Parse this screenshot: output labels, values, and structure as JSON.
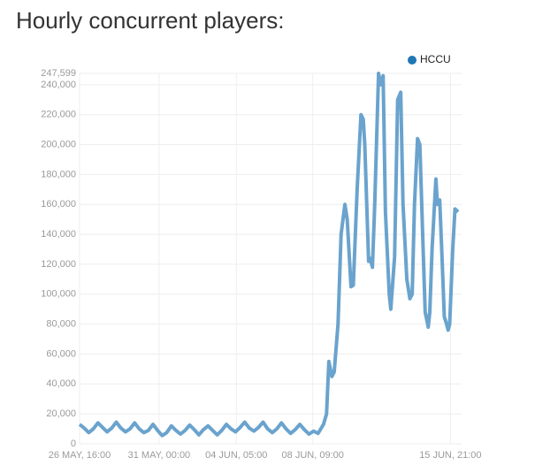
{
  "chart_data": {
    "type": "line",
    "title": "Hourly concurrent players:",
    "x": [
      "26 MAY, 16:00",
      "26 MAY, 22:00",
      "27 MAY, 04:00",
      "27 MAY, 10:00",
      "27 MAY, 16:00",
      "27 MAY, 22:00",
      "28 MAY, 04:00",
      "28 MAY, 10:00",
      "28 MAY, 16:00",
      "28 MAY, 22:00",
      "29 MAY, 04:00",
      "29 MAY, 10:00",
      "29 MAY, 16:00",
      "29 MAY, 22:00",
      "30 MAY, 04:00",
      "30 MAY, 10:00",
      "30 MAY, 16:00",
      "30 MAY, 22:00",
      "31 MAY, 04:00",
      "31 MAY, 10:00",
      "31 MAY, 16:00",
      "31 MAY, 22:00",
      "01 JUN, 04:00",
      "01 JUN, 10:00",
      "01 JUN, 16:00",
      "01 JUN, 22:00",
      "02 JUN, 04:00",
      "02 JUN, 10:00",
      "02 JUN, 16:00",
      "02 JUN, 22:00",
      "03 JUN, 04:00",
      "03 JUN, 10:00",
      "03 JUN, 16:00",
      "03 JUN, 22:00",
      "04 JUN, 04:00",
      "04 JUN, 10:00",
      "04 JUN, 16:00",
      "04 JUN, 22:00",
      "05 JUN, 04:00",
      "05 JUN, 10:00",
      "05 JUN, 16:00",
      "05 JUN, 22:00",
      "06 JUN, 04:00",
      "06 JUN, 10:00",
      "06 JUN, 16:00",
      "06 JUN, 22:00",
      "07 JUN, 04:00",
      "07 JUN, 10:00",
      "07 JUN, 16:00",
      "07 JUN, 22:00",
      "08 JUN, 04:00",
      "08 JUN, 10:00",
      "08 JUN, 16:00",
      "08 JUN, 23:00",
      "09 JUN, 03:00",
      "09 JUN, 06:00",
      "09 JUN, 10:00",
      "09 JUN, 13:00",
      "09 JUN, 18:00",
      "09 JUN, 22:00",
      "10 JUN, 03:00",
      "10 JUN, 06:00",
      "10 JUN, 11:00",
      "10 JUN, 14:00",
      "10 JUN, 19:00",
      "11 JUN, 00:00",
      "11 JUN, 03:00",
      "11 JUN, 05:00",
      "11 JUN, 10:00",
      "11 JUN, 12:00",
      "11 JUN, 15:00",
      "11 JUN, 18:00",
      "11 JUN, 23:00",
      "12 JUN, 02:00",
      "12 JUN, 05:00",
      "12 JUN, 08:00",
      "12 JUN, 13:00",
      "12 JUN, 15:00",
      "12 JUN, 20:00",
      "13 JUN, 00:00",
      "13 JUN, 04:00",
      "13 JUN, 07:00",
      "13 JUN, 12:00",
      "13 JUN, 16:00",
      "13 JUN, 19:00",
      "13 JUN, 22:00",
      "14 JUN, 02:00",
      "14 JUN, 05:00",
      "14 JUN, 09:00",
      "14 JUN, 12:00",
      "14 JUN, 16:00",
      "14 JUN, 18:00",
      "14 JUN, 21:00",
      "15 JUN, 02:00",
      "15 JUN, 04:00",
      "15 JUN, 07:00",
      "15 JUN, 10:00",
      "15 JUN, 13:00",
      "15 JUN, 16:00",
      "15 JUN, 18:00",
      "15 JUN, 20:00",
      "16 JUN, 00:00",
      "16 JUN, 03:00",
      "16 JUN, 07:00"
    ],
    "series": [
      {
        "name": "HCCU",
        "color": "#6aa3cd",
        "legend_color": "#1f77b4",
        "values": [
          13000,
          10500,
          7500,
          10000,
          14000,
          11000,
          8000,
          10500,
          14500,
          10500,
          8000,
          10000,
          14000,
          10000,
          7500,
          9000,
          13000,
          9000,
          5500,
          7500,
          12000,
          9000,
          6500,
          9000,
          12500,
          9500,
          6000,
          9500,
          12000,
          9000,
          6000,
          9000,
          13000,
          10000,
          8000,
          11000,
          14500,
          10500,
          8500,
          11000,
          14500,
          10000,
          7500,
          10000,
          14000,
          10000,
          7000,
          9500,
          13000,
          9500,
          6500,
          8500,
          7000,
          13000,
          20000,
          55000,
          45000,
          48000,
          80000,
          140000,
          160000,
          150000,
          105000,
          106000,
          170000,
          220000,
          217000,
          200000,
          122000,
          124000,
          118000,
          160000,
          247599,
          240000,
          246000,
          155000,
          100000,
          90000,
          125000,
          230000,
          235000,
          160000,
          110000,
          97000,
          100000,
          160000,
          204000,
          200000,
          135000,
          88000,
          78000,
          88000,
          130000,
          177000,
          160000,
          163000,
          125000,
          85000,
          80000,
          76000,
          80000,
          130000,
          157000,
          155000
        ]
      }
    ],
    "xlim": [
      "26 MAY, 16:00",
      "16 JUN, 07:00"
    ],
    "xticks": [
      "26 MAY, 16:00",
      "31 MAY, 00:00",
      "04 JUN, 05:00",
      "08 JUN, 09:00",
      "15 JUN, 21:00"
    ],
    "ylim": [
      0,
      247599
    ],
    "yticks": [
      0,
      {
        "value": 20000,
        "label": "20,000"
      },
      {
        "value": 40000,
        "label": "40,000"
      },
      {
        "value": 60000,
        "label": "60,000"
      },
      {
        "value": 80000,
        "label": "80,000"
      },
      {
        "value": 100000,
        "label": "100,000"
      },
      {
        "value": 120000,
        "label": "120,000"
      },
      {
        "value": 140000,
        "label": "140,000"
      },
      {
        "value": 160000,
        "label": "160,000"
      },
      {
        "value": 180000,
        "label": "180,000"
      },
      {
        "value": 200000,
        "label": "200,000"
      },
      {
        "value": 220000,
        "label": "220,000"
      },
      {
        "value": 240000,
        "label": "240,000"
      },
      {
        "value": 247599,
        "label": "247,599"
      }
    ],
    "grid": true,
    "legend": "top-right"
  }
}
